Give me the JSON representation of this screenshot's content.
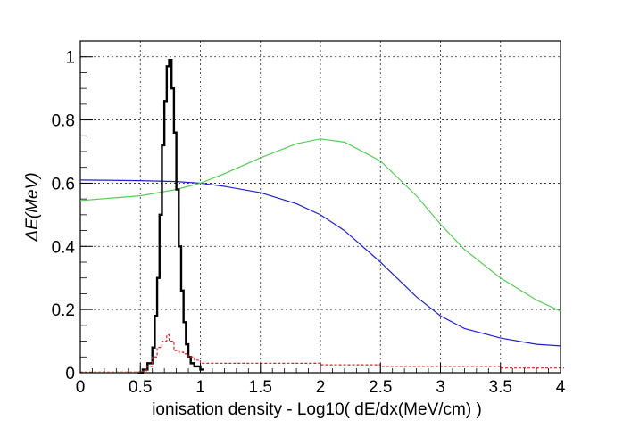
{
  "chart_data": {
    "type": "line",
    "title": "",
    "xlabel": "ionisation density - Log10( dE/dx(MeV/cm) )",
    "ylabel": "ΔE(MeV)",
    "xlim": [
      0,
      4
    ],
    "ylim": [
      0,
      1.05
    ],
    "grid": true,
    "legend": "none",
    "x_ticks": [
      "0",
      "0.5",
      "1",
      "1.5",
      "2",
      "2.5",
      "3",
      "3.5",
      "4"
    ],
    "y_ticks": [
      "0",
      "0.2",
      "0.4",
      "0.6",
      "0.8",
      "1"
    ],
    "series": [
      {
        "color": "#2020cc",
        "x": [
          0,
          0.5,
          0.8,
          1.0,
          1.2,
          1.5,
          1.8,
          2.0,
          2.2,
          2.5,
          2.8,
          3.0,
          3.2,
          3.5,
          3.8,
          4.0
        ],
        "y": [
          0.61,
          0.608,
          0.605,
          0.6,
          0.59,
          0.57,
          0.535,
          0.5,
          0.45,
          0.35,
          0.24,
          0.18,
          0.14,
          0.11,
          0.09,
          0.085
        ]
      },
      {
        "color": "#55cc55",
        "x": [
          0,
          0.5,
          0.8,
          1.0,
          1.2,
          1.5,
          1.8,
          2.0,
          2.2,
          2.5,
          2.8,
          3.0,
          3.2,
          3.5,
          3.8,
          4.0
        ],
        "y": [
          0.545,
          0.56,
          0.58,
          0.6,
          0.63,
          0.68,
          0.725,
          0.74,
          0.73,
          0.67,
          0.56,
          0.47,
          0.39,
          0.3,
          0.23,
          0.195
        ]
      },
      {
        "color": "#000000",
        "style": "histogram",
        "x": [
          0.48,
          0.52,
          0.56,
          0.6,
          0.62,
          0.64,
          0.66,
          0.68,
          0.7,
          0.72,
          0.74,
          0.76,
          0.78,
          0.8,
          0.82,
          0.84,
          0.86,
          0.88,
          0.9,
          0.92,
          0.95,
          1.0
        ],
        "y": [
          0.0,
          0.01,
          0.03,
          0.08,
          0.18,
          0.3,
          0.5,
          0.72,
          0.86,
          0.97,
          0.99,
          0.9,
          0.76,
          0.58,
          0.4,
          0.26,
          0.16,
          0.09,
          0.05,
          0.03,
          0.02,
          0.01
        ]
      },
      {
        "color": "#dd2222",
        "style": "dashed-histogram",
        "x": [
          0.0,
          0.5,
          0.55,
          0.6,
          0.64,
          0.68,
          0.72,
          0.74,
          0.78,
          0.82,
          0.86,
          0.9,
          0.95,
          1.0,
          1.1,
          1.2,
          1.5,
          2.0,
          2.5,
          3.0,
          3.5,
          4.0
        ],
        "y": [
          0.002,
          0.005,
          0.02,
          0.05,
          0.08,
          0.1,
          0.12,
          0.1,
          0.07,
          0.065,
          0.06,
          0.05,
          0.04,
          0.03,
          0.03,
          0.03,
          0.03,
          0.025,
          0.02,
          0.02,
          0.015,
          0.015
        ]
      }
    ]
  }
}
